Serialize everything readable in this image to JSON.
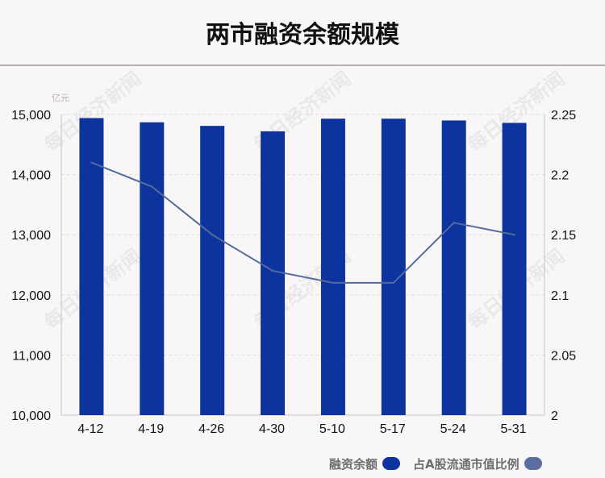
{
  "title": "两市融资余额规模",
  "unit_label": "亿元",
  "watermark": "每日经济新闻",
  "legend": {
    "bar_label": "融资余额",
    "line_label": "占A股流通市值比例"
  },
  "colors": {
    "bar": "#0d349e",
    "line": "#556b9d",
    "line_swatch": "#5a6f9f",
    "grid": "#e2dde0"
  },
  "chart_data": {
    "type": "bar+line",
    "categories": [
      "4-12",
      "4-19",
      "4-26",
      "4-30",
      "5-10",
      "5-17",
      "5-24",
      "5-31"
    ],
    "series": [
      {
        "name": "融资余额",
        "type": "bar",
        "axis": "left",
        "values": [
          14940,
          14870,
          14810,
          14720,
          14930,
          14930,
          14900,
          14860
        ]
      },
      {
        "name": "占A股流通市值比例",
        "type": "line",
        "axis": "right",
        "values": [
          2.21,
          2.19,
          2.15,
          2.12,
          2.11,
          2.11,
          2.16,
          2.15
        ]
      }
    ],
    "y_left": {
      "lim": [
        10000,
        15000
      ],
      "ticks": [
        10000,
        11000,
        12000,
        13000,
        14000,
        15000
      ],
      "tick_labels": [
        "10,000",
        "11,000",
        "12,000",
        "13,000",
        "14,000",
        "15,000"
      ]
    },
    "y_right": {
      "lim": [
        2,
        2.25
      ],
      "ticks": [
        2,
        2.05,
        2.1,
        2.15,
        2.2,
        2.25
      ],
      "tick_labels": [
        "2",
        "2.05",
        "2.1",
        "2.15",
        "2.2",
        "2.25"
      ]
    },
    "grid": "horizontal-dashed",
    "legend_position": "bottom-right"
  }
}
